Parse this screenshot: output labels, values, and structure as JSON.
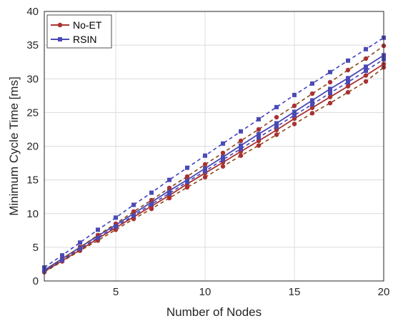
{
  "chart_data": {
    "type": "line",
    "title": "",
    "xlabel": "Number of Nodes",
    "ylabel": "Minimum Cycle Time [ms]",
    "xlim": [
      1,
      20
    ],
    "ylim": [
      0,
      40
    ],
    "x_ticks": [
      5,
      10,
      15,
      20
    ],
    "y_ticks": [
      0,
      5,
      10,
      15,
      20,
      25,
      30,
      35,
      40
    ],
    "grid": true,
    "legend": {
      "position": "top-left",
      "entries": [
        "No-ET",
        "RSIN"
      ]
    },
    "colors": {
      "No-ET": "#a83232",
      "RSIN": "#4a4ab4",
      "No-ET-bound": "#8b4513",
      "RSIN-bound": "#4040c0"
    },
    "x": [
      1,
      2,
      3,
      4,
      5,
      6,
      7,
      8,
      9,
      10,
      11,
      12,
      13,
      14,
      15,
      16,
      17,
      18,
      19,
      20
    ],
    "series": [
      {
        "name": "No-ET",
        "marker": "circle",
        "style": "solid",
        "values": [
          1.4,
          3.0,
          4.6,
          6.3,
          7.9,
          9.5,
          11.1,
          12.7,
          14.4,
          16.0,
          17.6,
          19.2,
          20.8,
          22.4,
          24.1,
          25.7,
          27.3,
          28.9,
          30.5,
          32.2
        ]
      },
      {
        "name": "RSIN",
        "marker": "square",
        "style": "solid",
        "values": [
          1.6,
          3.3,
          5.0,
          6.7,
          8.3,
          10.0,
          11.7,
          13.4,
          15.0,
          16.7,
          18.4,
          20.1,
          21.8,
          23.4,
          25.1,
          26.8,
          28.5,
          30.1,
          31.8,
          33.5
        ]
      },
      {
        "marker": "circle",
        "style": "dashed",
        "values": [
          1.3,
          2.9,
          4.5,
          6.0,
          7.6,
          9.2,
          10.7,
          12.3,
          13.9,
          15.4,
          17.0,
          18.6,
          20.1,
          21.7,
          23.3,
          24.9,
          26.4,
          28.0,
          29.6,
          31.7
        ]
      },
      {
        "marker": "circle",
        "style": "dashed",
        "values": [
          1.5,
          3.3,
          5.0,
          6.8,
          8.5,
          10.3,
          12.0,
          13.8,
          15.5,
          17.3,
          19.0,
          20.8,
          22.5,
          24.3,
          26.0,
          27.8,
          29.5,
          31.3,
          33.0,
          34.9
        ]
      },
      {
        "marker": "square",
        "style": "dashed",
        "values": [
          1.5,
          3.1,
          4.8,
          6.4,
          8.1,
          9.7,
          11.4,
          13.0,
          14.7,
          16.3,
          18.0,
          19.6,
          21.3,
          22.9,
          24.6,
          26.2,
          27.9,
          29.5,
          31.2,
          32.9
        ]
      },
      {
        "marker": "square",
        "style": "dashed",
        "values": [
          2.0,
          3.8,
          5.7,
          7.6,
          9.4,
          11.3,
          13.1,
          15.0,
          16.8,
          18.6,
          20.4,
          22.2,
          24.0,
          25.8,
          27.6,
          29.3,
          31.0,
          32.7,
          34.4,
          36.1
        ]
      }
    ]
  }
}
